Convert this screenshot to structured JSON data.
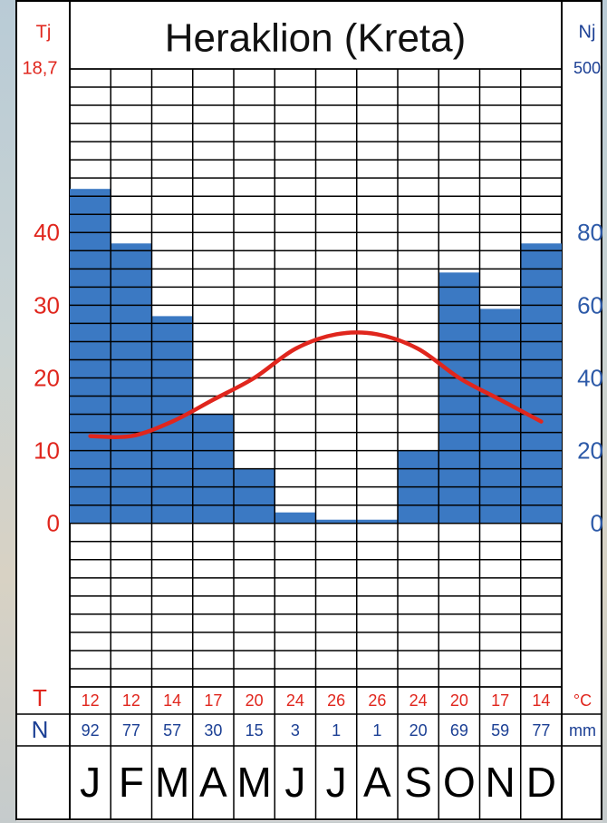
{
  "chart_data": {
    "type": "climate",
    "title": "Heraklion (Kreta)",
    "annual_temperature_label": "Tj",
    "annual_temperature": 18.7,
    "annual_temperature_value_label": "18,7",
    "annual_precipitation_label": "Nj",
    "annual_precipitation": 500,
    "categories": [
      "J",
      "F",
      "M",
      "A",
      "M",
      "J",
      "J",
      "A",
      "S",
      "O",
      "N",
      "D"
    ],
    "series": [
      {
        "name": "T",
        "unit": "°C",
        "color": "#e0261d",
        "axis": "y",
        "values": [
          12,
          12,
          14,
          17,
          20,
          24,
          26,
          26,
          24,
          20,
          17,
          14
        ]
      },
      {
        "name": "N",
        "unit": "mm",
        "color": "#3b79c3",
        "axis": "y2",
        "values": [
          92,
          77,
          57,
          30,
          15,
          3,
          1,
          1,
          20,
          69,
          59,
          77
        ]
      }
    ],
    "ylim": [
      -22.5,
      62.5
    ],
    "yticks": [
      0,
      10,
      20,
      30,
      40
    ],
    "y2lim": [
      -45,
      125
    ],
    "y2ticks": [
      0,
      20,
      40,
      60,
      80
    ],
    "grid": true,
    "grid_step": 2.5
  }
}
